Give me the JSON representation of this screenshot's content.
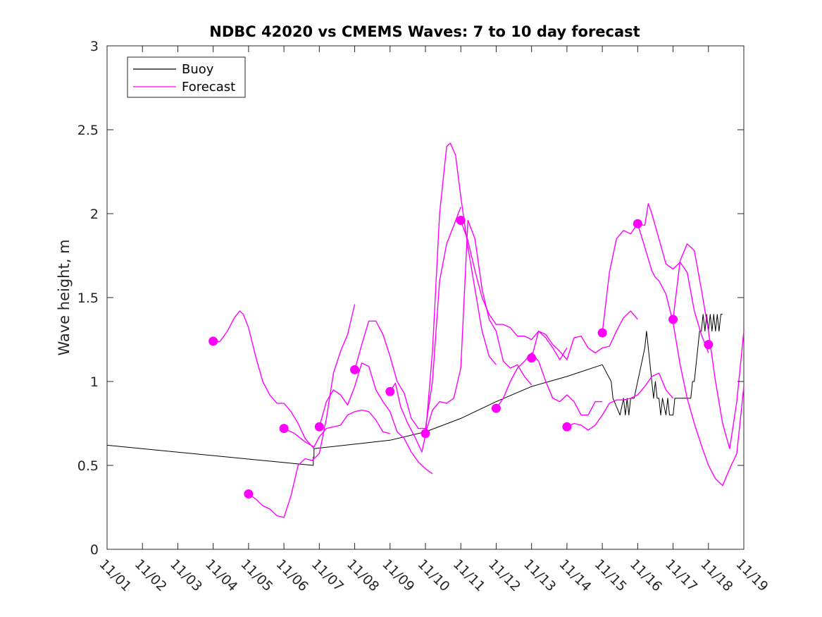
{
  "chart_data": {
    "type": "line",
    "title": "NDBC 42020 vs CMEMS Waves: 7 to 10 day forecast",
    "xlabel": "",
    "ylabel": "Wave height, m",
    "xlim": [
      0,
      18
    ],
    "ylim": [
      0,
      3
    ],
    "x_ticks": [
      0,
      1,
      2,
      3,
      4,
      5,
      6,
      7,
      8,
      9,
      10,
      11,
      12,
      13,
      14,
      15,
      16,
      17,
      18
    ],
    "x_tick_labels": [
      "11/01",
      "11/02",
      "11/03",
      "11/04",
      "11/05",
      "11/06",
      "11/07",
      "11/08",
      "11/09",
      "11/10",
      "11/11",
      "11/12",
      "11/13",
      "11/14",
      "11/15",
      "11/16",
      "11/17",
      "11/18",
      "11/19"
    ],
    "y_ticks": [
      0,
      0.5,
      1,
      1.5,
      2,
      2.5,
      3
    ],
    "y_tick_labels": [
      "0",
      "0.5",
      "1",
      "1.5",
      "2",
      "2.5",
      "3"
    ],
    "legend": {
      "position": "top-left",
      "entries": [
        {
          "label": "Buoy",
          "color": "#000000"
        },
        {
          "label": "Forecast",
          "color": "#ff00ff"
        }
      ]
    },
    "colors": {
      "buoy": "#000000",
      "forecast": "#ff00ff"
    },
    "series": [
      {
        "name": "Buoy",
        "color": "#000000",
        "x": [
          0,
          5.83,
          5.83,
          5.85,
          5.85,
          8.0,
          9.0,
          10.0,
          11.0,
          12.0,
          13.0,
          14.0,
          14.25,
          14.3,
          14.5,
          14.6,
          14.65,
          14.7,
          14.75,
          14.8,
          14.85,
          14.9,
          15.0,
          15.1,
          15.2,
          15.25,
          15.3,
          15.35,
          15.4,
          15.45,
          15.5,
          15.55,
          15.6,
          15.65,
          15.7,
          15.8,
          15.85,
          15.9,
          15.95,
          16.0,
          16.05,
          16.1,
          16.15,
          16.2,
          16.3,
          16.4,
          16.5,
          16.55,
          16.6,
          16.65,
          16.7,
          16.75,
          16.8,
          16.85,
          16.9,
          16.95,
          17.0,
          17.05,
          17.1,
          17.15,
          17.2,
          17.25,
          17.3,
          17.35,
          17.4
        ],
        "y": [
          0.62,
          0.5,
          0.55,
          0.55,
          0.6,
          0.65,
          0.7,
          0.78,
          0.88,
          0.97,
          1.03,
          1.1,
          1.0,
          0.9,
          0.8,
          0.9,
          0.8,
          0.9,
          0.8,
          0.9,
          0.9,
          0.9,
          1.0,
          1.1,
          1.2,
          1.3,
          1.2,
          1.1,
          1.0,
          0.9,
          1.0,
          0.9,
          0.9,
          0.8,
          0.9,
          0.8,
          0.9,
          0.8,
          0.8,
          0.8,
          0.9,
          0.9,
          0.9,
          0.9,
          0.9,
          0.9,
          0.9,
          1.0,
          1.0,
          1.1,
          1.2,
          1.3,
          1.3,
          1.4,
          1.3,
          1.4,
          1.3,
          1.4,
          1.3,
          1.4,
          1.3,
          1.4,
          1.3,
          1.4,
          1.4
        ]
      },
      {
        "name": "Forecast",
        "color": "#ff00ff",
        "x": [
          3.0,
          3.2,
          3.4,
          3.6,
          3.75,
          3.85,
          4.0,
          4.2,
          4.4,
          4.6,
          4.8,
          5.0,
          5.2,
          5.4,
          5.6,
          5.85
        ],
        "y": [
          1.23,
          1.24,
          1.3,
          1.38,
          1.42,
          1.4,
          1.32,
          1.15,
          1.0,
          0.92,
          0.87,
          0.87,
          0.82,
          0.75,
          0.66,
          0.6
        ]
      },
      {
        "name": "Forecast",
        "color": "#ff00ff",
        "x": [
          4.0,
          4.2,
          4.4,
          4.6,
          4.8,
          5.0,
          5.2,
          5.4,
          5.6,
          5.8,
          6.0,
          6.2,
          6.4,
          6.6,
          6.8,
          7.0
        ],
        "y": [
          0.33,
          0.3,
          0.26,
          0.24,
          0.2,
          0.19,
          0.32,
          0.5,
          0.54,
          0.53,
          0.57,
          0.78,
          1.05,
          1.18,
          1.28,
          1.46
        ]
      },
      {
        "name": "Forecast",
        "color": "#ff00ff",
        "x": [
          5.0,
          5.3,
          5.6,
          5.85,
          6.0,
          6.2,
          6.4,
          6.6,
          6.8,
          7.0,
          7.2,
          7.4,
          7.6,
          7.8,
          8.0
        ],
        "y": [
          0.72,
          0.69,
          0.64,
          0.61,
          0.67,
          0.72,
          0.73,
          0.74,
          0.8,
          0.82,
          0.83,
          0.82,
          0.77,
          0.7,
          0.69
        ]
      },
      {
        "name": "Forecast",
        "color": "#ff00ff",
        "x": [
          6.0,
          6.2,
          6.4,
          6.6,
          6.8,
          7.0,
          7.2,
          7.4,
          7.6,
          7.8,
          8.0,
          8.2,
          8.4,
          8.6,
          8.8,
          9.0,
          9.2
        ],
        "y": [
          0.73,
          0.88,
          0.95,
          0.92,
          0.86,
          0.97,
          1.11,
          1.09,
          0.95,
          0.88,
          0.82,
          0.7,
          0.66,
          0.58,
          0.52,
          0.48,
          0.45
        ]
      },
      {
        "name": "Forecast",
        "color": "#ff00ff",
        "x": [
          7.0,
          7.2,
          7.4,
          7.6,
          7.8,
          8.0,
          8.2,
          8.4,
          8.6,
          8.8,
          9.0,
          9.2,
          9.4,
          9.6,
          9.8,
          10.0
        ],
        "y": [
          1.07,
          1.22,
          1.36,
          1.36,
          1.28,
          1.15,
          1.0,
          0.93,
          0.78,
          0.72,
          0.72,
          1.0,
          1.6,
          1.82,
          1.93,
          2.04
        ]
      },
      {
        "name": "Forecast",
        "color": "#ff00ff",
        "x": [
          8.0,
          8.15,
          8.3,
          8.5,
          8.7,
          8.9,
          9.0,
          9.2,
          9.4,
          9.6,
          9.7,
          9.85,
          10.0,
          10.2,
          10.4,
          10.6,
          10.8,
          11.0
        ],
        "y": [
          0.94,
          0.99,
          0.85,
          0.75,
          0.67,
          0.58,
          0.68,
          1.18,
          2.0,
          2.4,
          2.42,
          2.35,
          2.1,
          1.8,
          1.55,
          1.3,
          1.15,
          1.1
        ]
      },
      {
        "name": "Forecast",
        "color": "#ff00ff",
        "x": [
          9.0,
          9.2,
          9.4,
          9.6,
          9.8,
          10.0,
          10.2,
          10.4,
          10.6,
          10.8,
          11.0,
          11.2,
          11.4,
          11.6,
          11.8,
          12.0
        ],
        "y": [
          0.69,
          0.83,
          0.88,
          0.87,
          0.9,
          1.08,
          1.96,
          1.85,
          1.55,
          1.37,
          1.3,
          1.12,
          1.08,
          1.1,
          1.03,
          0.98
        ]
      },
      {
        "name": "Forecast",
        "color": "#ff00ff",
        "x": [
          10.0,
          10.2,
          10.4,
          10.6,
          10.8,
          11.0,
          11.2,
          11.4,
          11.6,
          11.8,
          12.0,
          12.2,
          12.4,
          12.6,
          12.8,
          13.0
        ],
        "y": [
          1.96,
          1.84,
          1.66,
          1.5,
          1.4,
          1.34,
          1.34,
          1.32,
          1.27,
          1.27,
          1.25,
          1.3,
          1.26,
          1.2,
          1.13,
          1.2
        ]
      },
      {
        "name": "Forecast",
        "color": "#ff00ff",
        "x": [
          11.0,
          11.2,
          11.4,
          11.6,
          11.8,
          12.0,
          12.2,
          12.4,
          12.6,
          12.8,
          13.0,
          13.2,
          13.4,
          13.6,
          13.8,
          14.0
        ],
        "y": [
          0.84,
          0.9,
          1.0,
          1.08,
          1.12,
          1.17,
          1.12,
          1.0,
          0.9,
          0.88,
          0.92,
          0.88,
          0.8,
          0.8,
          0.88,
          0.88
        ]
      },
      {
        "name": "Forecast",
        "color": "#ff00ff",
        "x": [
          12.0,
          12.2,
          12.4,
          12.6,
          12.8,
          13.0,
          13.2,
          13.4,
          13.6,
          13.8,
          14.0,
          14.2,
          14.4,
          14.6,
          14.8,
          15.0
        ],
        "y": [
          1.14,
          1.3,
          1.28,
          1.22,
          1.18,
          1.13,
          1.26,
          1.27,
          1.2,
          1.17,
          1.2,
          1.21,
          1.3,
          1.38,
          1.42,
          1.37
        ]
      },
      {
        "name": "Forecast",
        "color": "#ff00ff",
        "x": [
          13.0,
          13.2,
          13.4,
          13.6,
          13.8,
          14.0,
          14.2,
          14.4,
          14.6,
          14.8,
          15.0,
          15.2,
          15.4,
          15.6,
          15.8,
          16.0
        ],
        "y": [
          0.73,
          0.75,
          0.74,
          0.71,
          0.74,
          0.8,
          0.87,
          0.89,
          0.89,
          0.9,
          0.92,
          0.97,
          1.03,
          1.05,
          0.95,
          0.9
        ]
      },
      {
        "name": "Forecast",
        "color": "#ff00ff",
        "x": [
          14.0,
          14.2,
          14.4,
          14.6,
          14.8,
          15.0,
          15.2,
          15.3,
          15.4,
          15.6,
          15.8,
          16.0,
          16.2,
          16.4,
          16.6,
          16.8,
          17.0
        ],
        "y": [
          1.29,
          1.65,
          1.85,
          1.9,
          1.88,
          1.94,
          1.93,
          2.06,
          2.0,
          1.85,
          1.7,
          1.67,
          1.71,
          1.65,
          1.42,
          1.28,
          1.17
        ]
      },
      {
        "name": "Forecast",
        "color": "#ff00ff",
        "x": [
          15.0,
          15.2,
          15.4,
          15.5,
          15.6,
          15.8,
          16.0,
          16.2,
          16.4,
          16.6,
          16.8,
          17.0,
          17.2,
          17.4,
          17.6,
          17.8,
          18.0
        ],
        "y": [
          1.94,
          1.8,
          1.66,
          1.62,
          1.6,
          1.52,
          1.35,
          1.1,
          0.9,
          0.75,
          0.62,
          0.5,
          0.42,
          0.38,
          0.48,
          0.57,
          0.97
        ]
      },
      {
        "name": "Forecast",
        "color": "#ff00ff",
        "x": [
          16.0,
          16.2,
          16.4,
          16.6,
          16.8,
          17.0,
          17.2,
          17.4,
          17.6,
          17.8,
          18.0
        ],
        "y": [
          1.37,
          1.72,
          1.82,
          1.78,
          1.55,
          1.3,
          1.0,
          0.75,
          0.6,
          0.88,
          1.3
        ]
      }
    ],
    "forecast_markers": {
      "name": "Forecast start",
      "x": [
        3.0,
        4.0,
        5.0,
        6.0,
        7.0,
        8.0,
        9.0,
        10.0,
        11.0,
        12.0,
        13.0,
        14.0,
        15.0,
        16.0,
        17.0
      ],
      "y": [
        1.24,
        0.33,
        0.72,
        0.73,
        1.07,
        0.94,
        0.69,
        1.96,
        0.84,
        1.14,
        0.73,
        1.29,
        1.94,
        1.37,
        1.22
      ]
    }
  }
}
